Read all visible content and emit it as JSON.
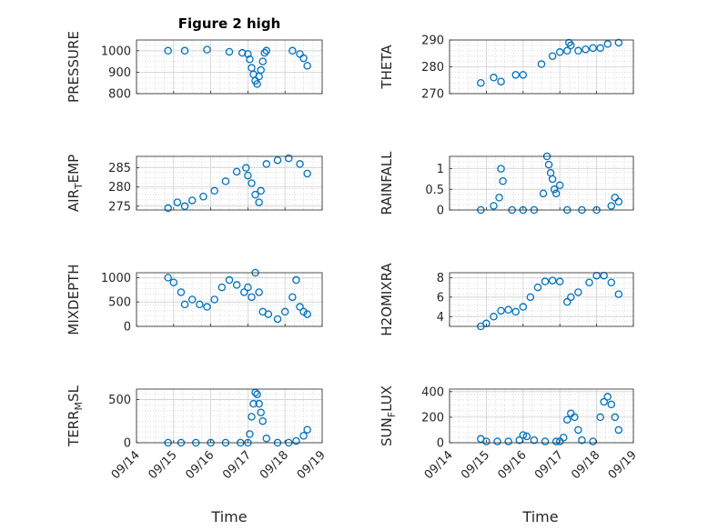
{
  "figure_title": "Figure 2 high",
  "x_label": "Time",
  "colors": {
    "marker": "#0072BD",
    "axis": "#262626",
    "grid": "#c8c8c8"
  },
  "chart_data": [
    {
      "type": "scatter",
      "ylabel": "PRESSURE",
      "yticks": [
        800,
        900,
        1000
      ],
      "ylim": [
        800,
        1050
      ],
      "title": "Figure 2 high",
      "x": [
        14.85,
        15.3,
        15.9,
        16.5,
        16.85,
        17.0,
        17.05,
        17.1,
        17.15,
        17.2,
        17.25,
        17.3,
        17.35,
        17.4,
        17.45,
        17.5,
        18.2,
        18.4,
        18.5,
        18.6
      ],
      "y": [
        1000,
        1000,
        1005,
        995,
        990,
        985,
        960,
        920,
        890,
        860,
        845,
        880,
        910,
        950,
        990,
        1000,
        1000,
        985,
        965,
        930
      ]
    },
    {
      "type": "scatter",
      "ylabel": "THETA",
      "yticks": [
        270,
        280,
        290
      ],
      "ylim": [
        270,
        290
      ],
      "x": [
        14.85,
        15.2,
        15.4,
        15.8,
        16.0,
        16.5,
        16.8,
        17.0,
        17.2,
        17.25,
        17.3,
        17.5,
        17.7,
        17.9,
        18.1,
        18.3,
        18.6
      ],
      "y": [
        274,
        276,
        274.5,
        277,
        277,
        281,
        284,
        285.5,
        286,
        289,
        288,
        286,
        286.5,
        287,
        287,
        288.5,
        289
      ]
    },
    {
      "type": "scatter",
      "ylabel": "AIR_TEMP",
      "yticks": [
        275,
        280,
        285
      ],
      "ylim": [
        274,
        288
      ],
      "x": [
        14.85,
        15.1,
        15.3,
        15.5,
        15.8,
        16.1,
        16.4,
        16.7,
        16.95,
        17.0,
        17.1,
        17.2,
        17.3,
        17.35,
        17.5,
        17.8,
        18.1,
        18.4,
        18.6
      ],
      "y": [
        274.5,
        276,
        275,
        276.5,
        277.5,
        279,
        281.5,
        284,
        285,
        283,
        281,
        278,
        276,
        279,
        286,
        287,
        287.5,
        286,
        283.5
      ]
    },
    {
      "type": "scatter",
      "ylabel": "RAINFALL",
      "yticks": [
        0,
        0.5,
        1
      ],
      "ylim": [
        0,
        1.3
      ],
      "x": [
        14.85,
        15.2,
        15.35,
        15.4,
        15.45,
        15.7,
        16.0,
        16.3,
        16.55,
        16.65,
        16.7,
        16.75,
        16.8,
        16.85,
        16.9,
        17.0,
        17.2,
        17.6,
        18.0,
        18.4,
        18.5,
        18.6
      ],
      "y": [
        0,
        0.1,
        0.3,
        1.0,
        0.7,
        0,
        0,
        0,
        0.4,
        1.3,
        1.1,
        0.9,
        0.75,
        0.5,
        0.4,
        0.6,
        0,
        0,
        0,
        0.1,
        0.3,
        0.2
      ]
    },
    {
      "type": "scatter",
      "ylabel": "MIXDEPTH",
      "yticks": [
        0,
        500,
        1000
      ],
      "ylim": [
        0,
        1100
      ],
      "x": [
        14.85,
        15.0,
        15.2,
        15.3,
        15.5,
        15.7,
        15.9,
        16.1,
        16.3,
        16.5,
        16.7,
        16.9,
        17.0,
        17.1,
        17.2,
        17.3,
        17.4,
        17.55,
        17.8,
        18.0,
        18.2,
        18.3,
        18.4,
        18.5,
        18.6
      ],
      "y": [
        1000,
        900,
        700,
        450,
        550,
        450,
        400,
        550,
        800,
        950,
        850,
        700,
        800,
        600,
        1100,
        700,
        300,
        250,
        150,
        300,
        600,
        950,
        400,
        300,
        250
      ]
    },
    {
      "type": "scatter",
      "ylabel": "H2OMIXRA",
      "yticks": [
        4,
        6,
        8
      ],
      "ylim": [
        3,
        8.5
      ],
      "x": [
        14.85,
        15.0,
        15.2,
        15.4,
        15.6,
        15.8,
        16.0,
        16.2,
        16.4,
        16.6,
        16.8,
        17.0,
        17.2,
        17.3,
        17.5,
        17.8,
        18.0,
        18.2,
        18.4,
        18.6
      ],
      "y": [
        3.0,
        3.3,
        4.0,
        4.6,
        4.7,
        4.5,
        5.0,
        6.0,
        7.0,
        7.6,
        7.7,
        7.6,
        5.5,
        6.0,
        6.5,
        7.5,
        8.2,
        8.2,
        7.5,
        6.3
      ]
    },
    {
      "type": "scatter",
      "ylabel": "TERR_MSL",
      "yticks": [
        0,
        500
      ],
      "ylim": [
        0,
        620
      ],
      "x": [
        14.85,
        15.2,
        15.6,
        16.0,
        16.4,
        16.8,
        17.0,
        17.05,
        17.1,
        17.15,
        17.2,
        17.25,
        17.3,
        17.35,
        17.4,
        17.5,
        17.8,
        18.1,
        18.3,
        18.5,
        18.6
      ],
      "y": [
        0,
        0,
        0,
        0,
        0,
        0,
        0,
        100,
        300,
        450,
        580,
        560,
        450,
        350,
        250,
        50,
        0,
        0,
        20,
        80,
        150
      ]
    },
    {
      "type": "scatter",
      "ylabel": "SUN_FLUX",
      "yticks": [
        0,
        200,
        400
      ],
      "ylim": [
        0,
        420
      ],
      "x": [
        14.85,
        15.0,
        15.3,
        15.6,
        15.9,
        16.0,
        16.1,
        16.3,
        16.6,
        16.9,
        17.0,
        17.1,
        17.2,
        17.3,
        17.4,
        17.5,
        17.6,
        17.9,
        18.1,
        18.2,
        18.3,
        18.4,
        18.5,
        18.6
      ],
      "y": [
        30,
        10,
        10,
        10,
        20,
        60,
        50,
        20,
        10,
        10,
        10,
        40,
        180,
        230,
        200,
        100,
        20,
        10,
        200,
        320,
        360,
        300,
        200,
        100
      ]
    }
  ],
  "x_ticks": [
    "09/14",
    "09/15",
    "09/16",
    "09/17",
    "09/18",
    "09/19"
  ],
  "xlim": [
    14,
    19
  ]
}
